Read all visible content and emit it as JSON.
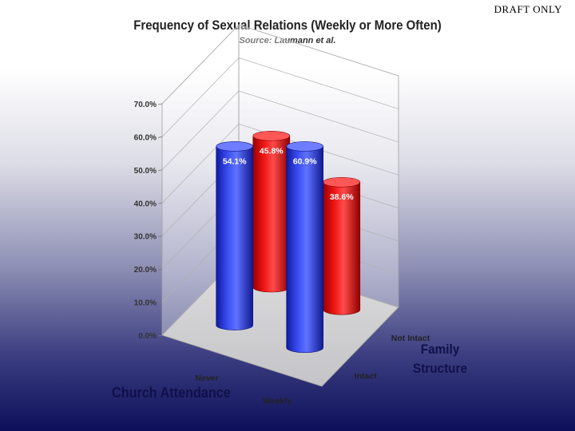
{
  "watermark": "DRAFT ONLY",
  "chart_data": {
    "type": "bar",
    "title": "Frequency of Sexual Relations (Weekly or More Often)",
    "subtitle": "Source: Laumann et al.",
    "xlabel": "Church Attendance",
    "zlabel_line1": "Family",
    "zlabel_line2": "Structure",
    "categories": [
      "Never",
      "Weekly"
    ],
    "depth_categories": [
      "Intact",
      "Not Intact"
    ],
    "series": [
      {
        "name": "Intact",
        "values": [
          54.1,
          60.9
        ],
        "labels": [
          "54.1%",
          "60.9%"
        ]
      },
      {
        "name": "Not Intact",
        "values": [
          45.8,
          38.6
        ],
        "labels": [
          "45.8%",
          "38.6%"
        ]
      }
    ],
    "ylim": [
      0,
      70
    ],
    "yticks": [
      "0.0%",
      "10.0%",
      "20.0%",
      "30.0%",
      "40.0%",
      "50.0%",
      "60.0%",
      "70.0%"
    ],
    "ytick_values": [
      0,
      10,
      20,
      30,
      40,
      50,
      60,
      70
    ],
    "grid": true,
    "colors": {
      "Intact": "#2a3ad6",
      "Not Intact": "#e01010"
    }
  }
}
